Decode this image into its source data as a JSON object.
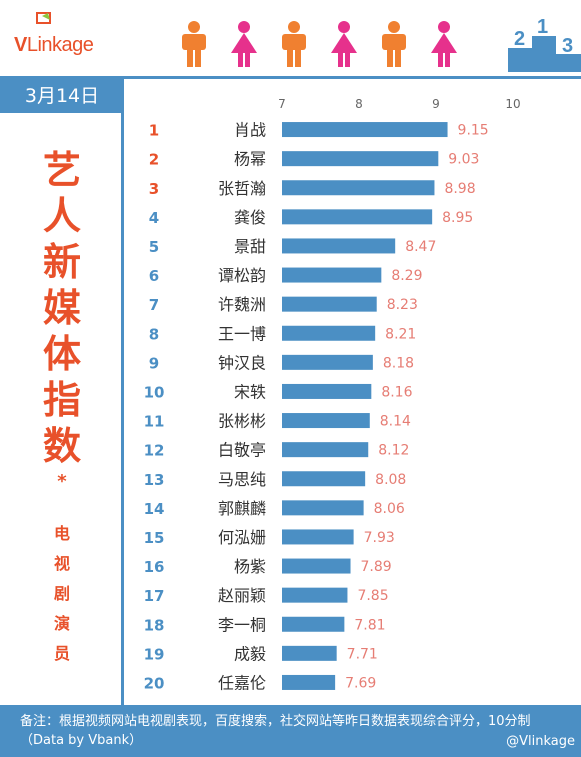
{
  "brand": {
    "logo_v": "V",
    "logo_text": "Linkage",
    "accent": "#e8512a",
    "primary": "#4b8fc4"
  },
  "header": {
    "date": "3月14日",
    "podium_numbers": [
      "2",
      "1",
      "3"
    ]
  },
  "side_title": {
    "big": [
      "艺",
      "人",
      "新",
      "媒",
      "体",
      "指",
      "数"
    ],
    "asterisk": "*",
    "small": [
      "电",
      "视",
      "剧",
      "演",
      "员"
    ]
  },
  "footer": {
    "note": "备注：根据视频网站电视剧表现，百度搜索，社交网站等昨日数据表现综合评分，10分制（Data by Vbank）",
    "watermark": "@Vlinkage"
  },
  "chart_data": {
    "type": "bar",
    "orientation": "horizontal",
    "xlim": [
      7,
      10
    ],
    "ticks": [
      "7",
      "8",
      "9",
      "10"
    ],
    "categories": [
      "肖战",
      "杨幂",
      "张哲瀚",
      "龚俊",
      "景甜",
      "谭松韵",
      "许魏洲",
      "王一博",
      "钟汉良",
      "宋轶",
      "张彬彬",
      "白敬亭",
      "马思纯",
      "郭麒麟",
      "何泓姗",
      "杨紫",
      "赵丽颖",
      "李一桐",
      "成毅",
      "任嘉伦"
    ],
    "ranks": [
      "1",
      "2",
      "3",
      "4",
      "5",
      "6",
      "7",
      "8",
      "9",
      "10",
      "11",
      "12",
      "13",
      "14",
      "15",
      "16",
      "17",
      "18",
      "19",
      "20"
    ],
    "values": [
      9.15,
      9.03,
      8.98,
      8.95,
      8.47,
      8.29,
      8.23,
      8.21,
      8.18,
      8.16,
      8.14,
      8.12,
      8.08,
      8.06,
      7.93,
      7.89,
      7.85,
      7.81,
      7.71,
      7.69
    ],
    "value_labels": [
      "9.15",
      "9.03",
      "8.98",
      "8.95",
      "8.47",
      "8.29",
      "8.23",
      "8.21",
      "8.18",
      "8.16",
      "8.14",
      "8.12",
      "8.08",
      "8.06",
      "7.93",
      "7.89",
      "7.85",
      "7.81",
      "7.71",
      "7.69"
    ],
    "colors": {
      "bar": "#4b8fc4",
      "value": "#e67d74",
      "rank_top3": "#e8512a",
      "rank_rest": "#4b8fc4"
    }
  }
}
